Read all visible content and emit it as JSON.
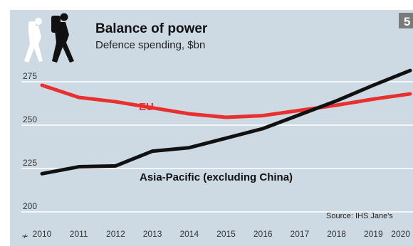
{
  "chart_data": {
    "type": "line",
    "title": "Balance of power",
    "subtitle": "Defence spending, $bn",
    "badge": "5",
    "source": "Source: IHS Jane's",
    "x": [
      2010,
      2011,
      2012,
      2013,
      2014,
      2015,
      2016,
      2017,
      2018,
      2019,
      2020
    ],
    "x_tick_labels": [
      "2010",
      "2011",
      "2012",
      "2013",
      "2014",
      "2015",
      "2016",
      "2017",
      "2018",
      "2019",
      "2020"
    ],
    "y_ticks": [
      200,
      225,
      250,
      275
    ],
    "y_tick_labels": [
      "200",
      "225",
      "250",
      "275"
    ],
    "ylim": [
      200,
      280
    ],
    "axis_break_symbol": "≁",
    "series": [
      {
        "name": "EU",
        "color": "#e8302e",
        "values": [
          273,
          266,
          263.5,
          260,
          256.5,
          254.5,
          255.5,
          258.5,
          261.5,
          265,
          268
        ]
      },
      {
        "name": "Asia-Pacific (excluding China)",
        "color": "#111111",
        "values": [
          222,
          226,
          226.5,
          235,
          237,
          242.5,
          248,
          256,
          264,
          273,
          281.5
        ]
      }
    ],
    "grid": true,
    "icon": "two-hikers-icon"
  }
}
